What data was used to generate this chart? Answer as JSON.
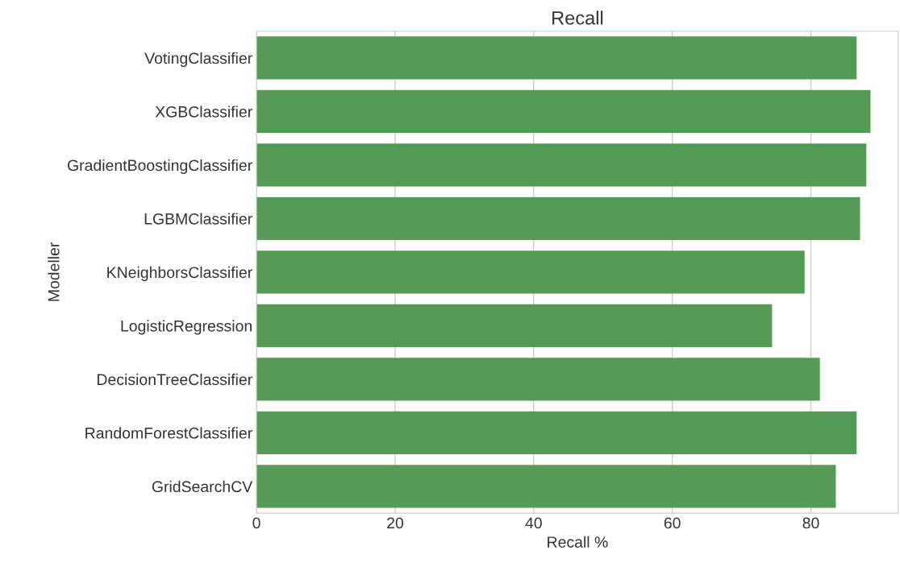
{
  "chart_data": {
    "type": "bar",
    "orientation": "horizontal",
    "title": "Recall",
    "xlabel": "Recall %",
    "ylabel": "Modeller",
    "categories": [
      "VotingClassifier",
      "XGBClassifier",
      "GradientBoostingClassifier",
      "LGBMClassifier",
      "KNeighborsClassifier",
      "LogisticRegression",
      "DecisionTreeClassifier",
      "RandomForestClassifier",
      "GridSearchCV"
    ],
    "values": [
      86.6,
      88.6,
      88.0,
      87.1,
      79.1,
      74.4,
      81.3,
      86.6,
      83.6
    ],
    "color": "#559a55",
    "xlim": [
      0,
      92.6
    ],
    "xticks": [
      0,
      20,
      40,
      60,
      80
    ],
    "grid": "x"
  }
}
